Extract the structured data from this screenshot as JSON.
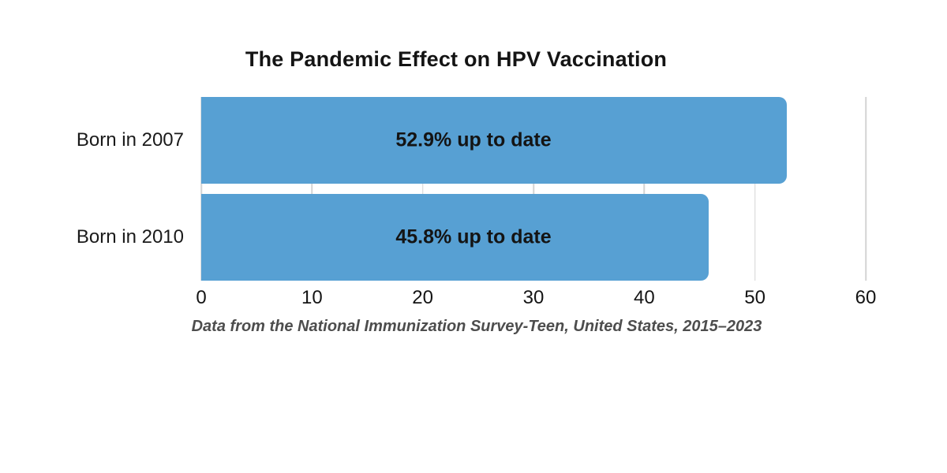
{
  "chart_data": {
    "type": "bar",
    "orientation": "horizontal",
    "title": "The Pandemic Effect on HPV Vaccination",
    "caption": "Data from the National Immunization Survey-Teen, United States, 2015–2023",
    "categories": [
      "Born in 2007",
      "Born in 2010"
    ],
    "values": [
      52.9,
      45.8
    ],
    "bar_labels": [
      "52.9% up to date",
      "45.8% up to date"
    ],
    "xticks": [
      0,
      10,
      20,
      30,
      40,
      50,
      60
    ],
    "xlim": [
      0,
      60
    ],
    "xlabel": "",
    "ylabel": "",
    "grid": "vertical gridlines at x ticks",
    "legend": "none",
    "colors": {
      "bar": "#57A0D3",
      "gridline": "#D4D4D4",
      "text": "#141414",
      "caption_text": "#4D4D4D",
      "background": "#FFFFFF"
    }
  }
}
